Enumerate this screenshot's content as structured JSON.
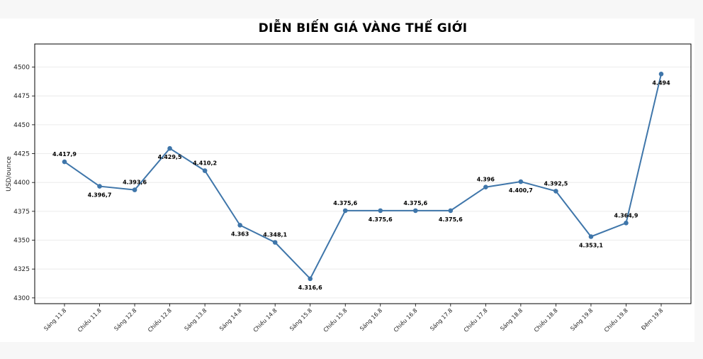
{
  "chart_data": {
    "type": "line",
    "title": "DIỄN BIẾN GIÁ VÀNG THẾ GIỚI",
    "xlabel": "",
    "ylabel": "USD/ounce",
    "ylim": [
      4295,
      4520
    ],
    "yticks": [
      4300,
      4325,
      4350,
      4375,
      4400,
      4425,
      4450,
      4475,
      4500
    ],
    "grid": true,
    "legend": "none",
    "line_color": "#3f76aa",
    "categories": [
      "Sáng 11.8",
      "Chiều 11.8",
      "Sáng 12.8",
      "Chiều 12.8",
      "Sáng 13.8",
      "Sáng 14.8",
      "Chiều 14.8",
      "Sáng 15.8",
      "Chiều 15.8",
      "Sáng 16.8",
      "Chiều 16.8",
      "Sáng 17.8",
      "Chiều 17.8",
      "Sáng 18.8",
      "Chiều 18.8",
      "Sáng 19.8",
      "Chiều 19.8",
      "Đêm 19.8"
    ],
    "series": [
      {
        "values": [
          4417.9,
          4396.7,
          4393.6,
          4429.5,
          4410.2,
          4363,
          4348.1,
          4316.6,
          4375.6,
          4375.6,
          4375.6,
          4375.6,
          4396,
          4400.7,
          4392.5,
          4353.1,
          4364.9,
          4494
        ],
        "labels": [
          "4.417,9",
          "4.396,7",
          "4.393,6",
          "4.429,5",
          "4.410,2",
          "4.363",
          "4.348,1",
          "4.316,6",
          "4.375,6",
          "4.375,6",
          "4.375,6",
          "4.375,6",
          "4.396",
          "4.400,7",
          "4.392,5",
          "4.353,1",
          "4.364,9",
          "4.494"
        ],
        "label_side": [
          "above",
          "below",
          "above",
          "below",
          "above",
          "below",
          "above",
          "below",
          "above",
          "below",
          "above",
          "below",
          "above",
          "below",
          "above",
          "below",
          "above",
          "below"
        ]
      }
    ]
  }
}
